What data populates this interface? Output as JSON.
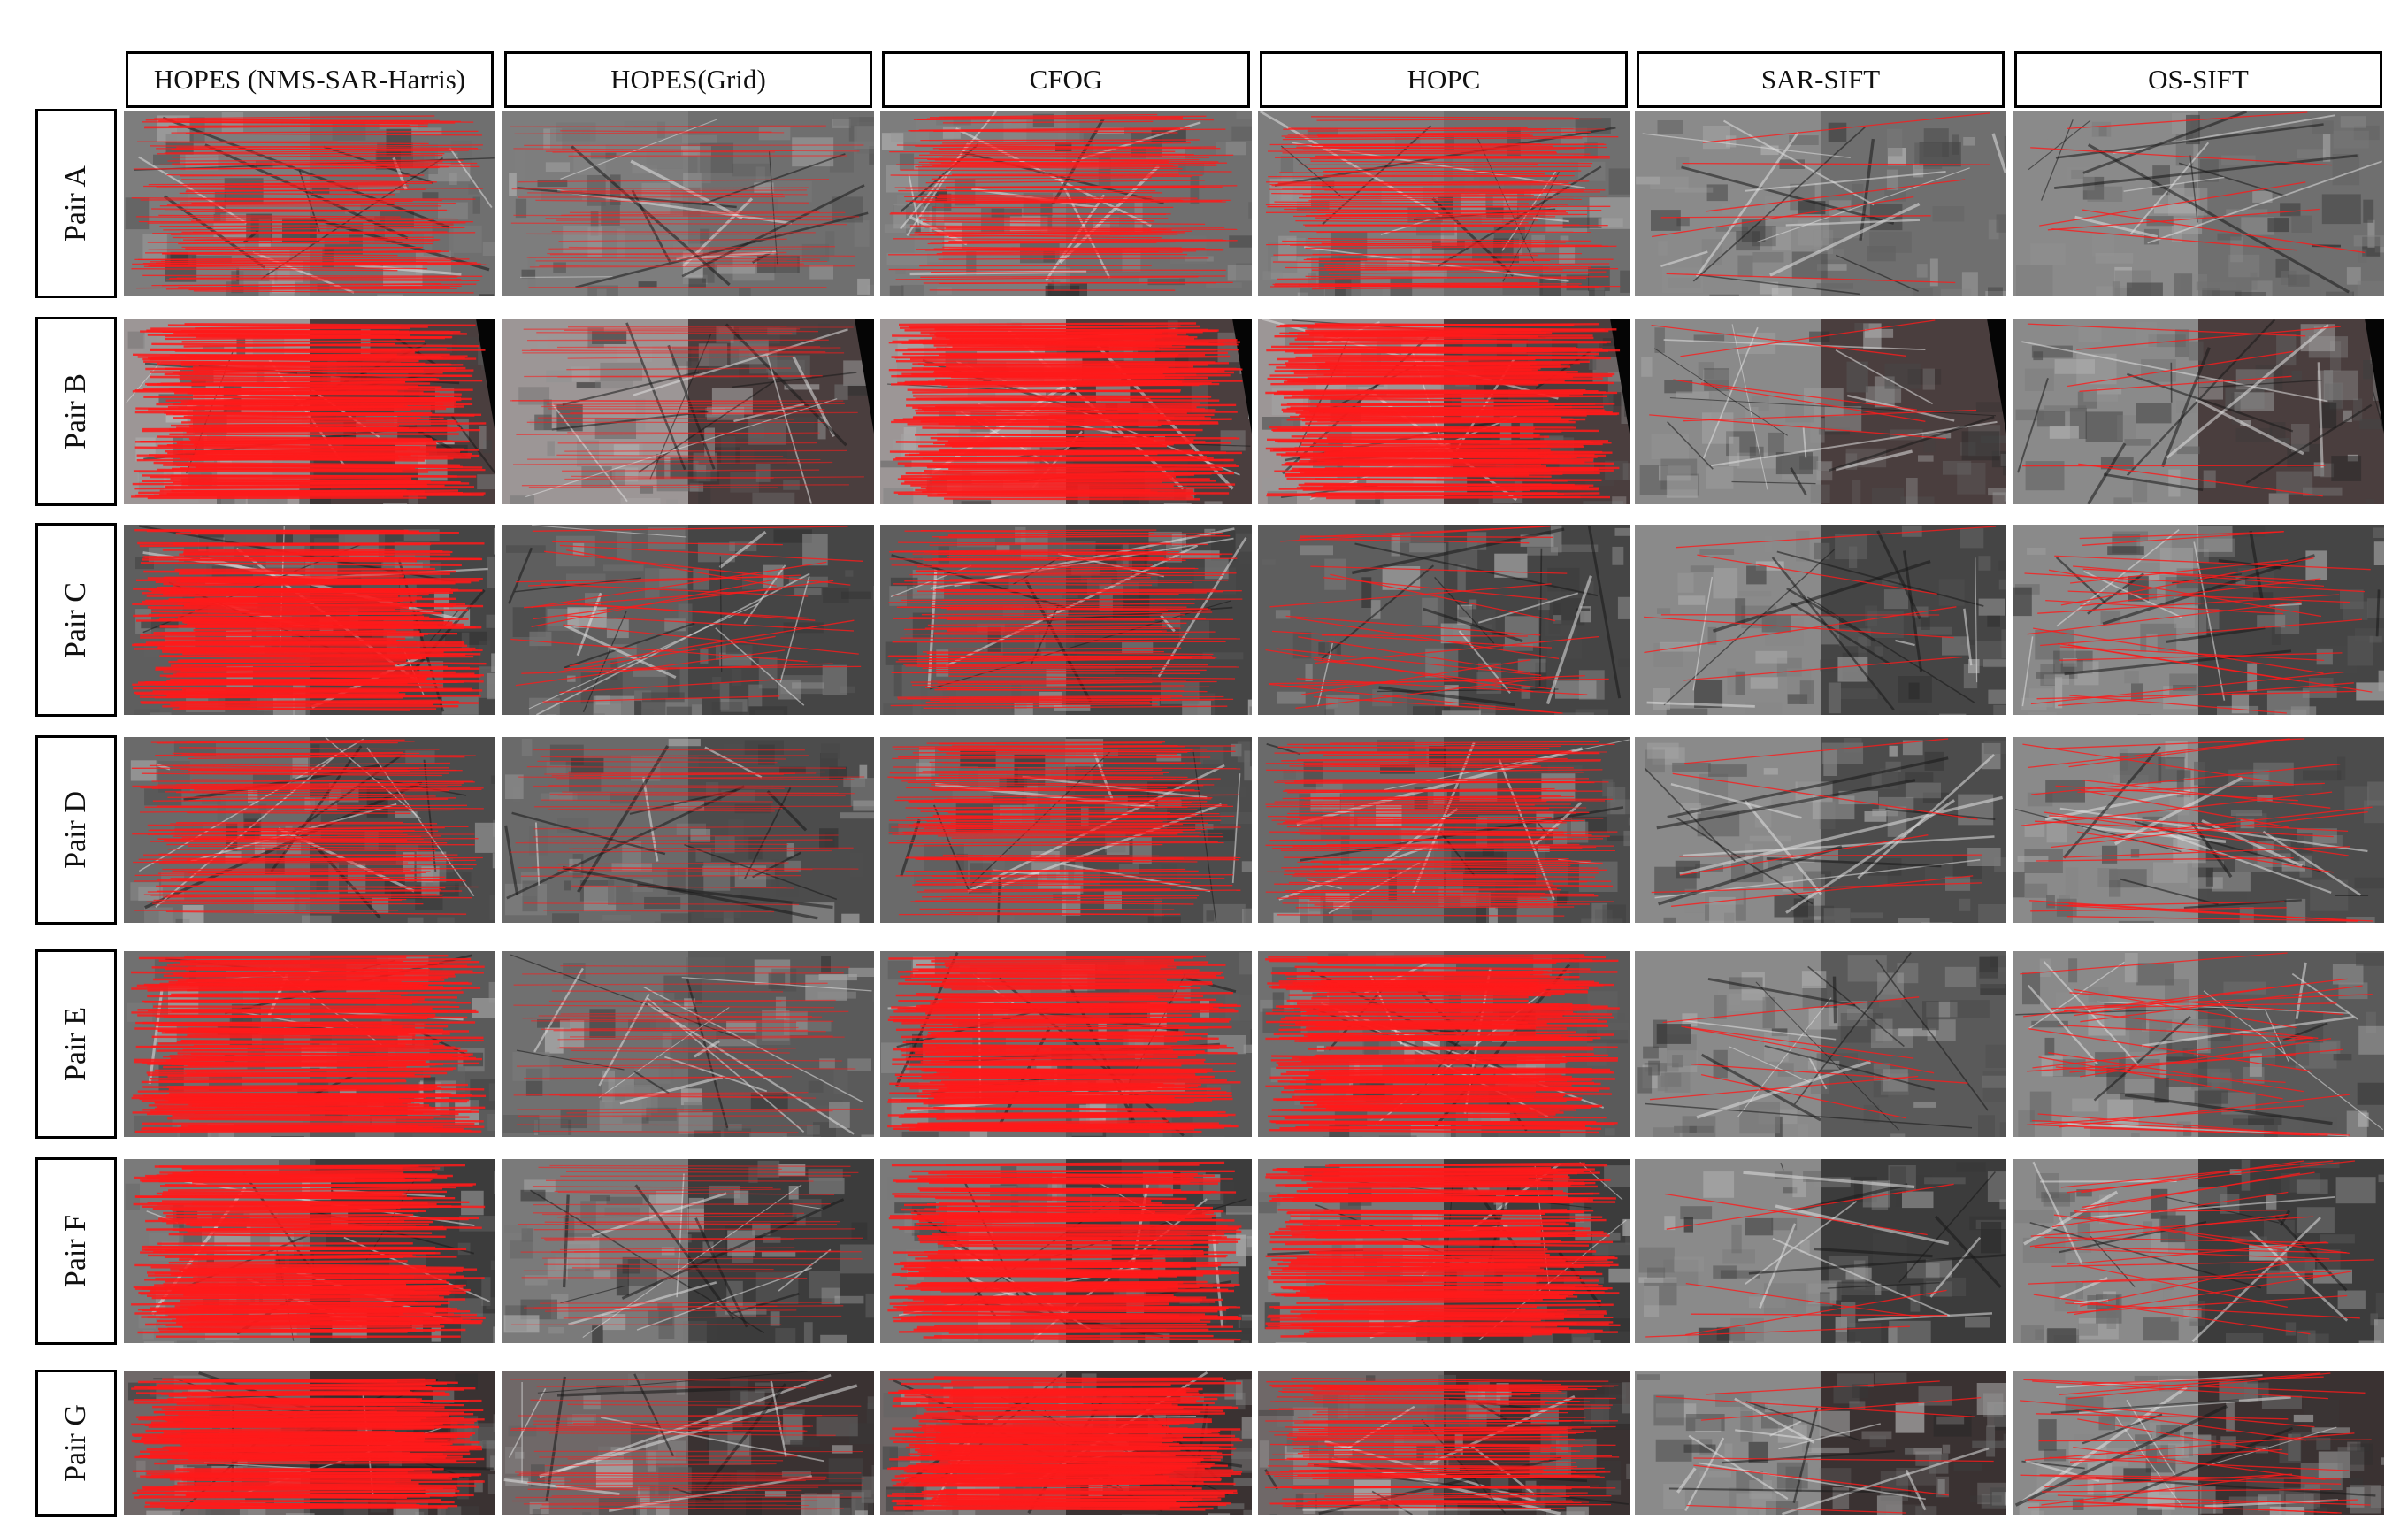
{
  "columns": [
    "HOPES (NMS-SAR-Harris)",
    "HOPES(Grid)",
    "CFOG",
    "HOPC",
    "SAR-SIFT",
    "OS-SIFT"
  ],
  "rows": [
    "Pair A",
    "Pair B",
    "Pair C",
    "Pair D",
    "Pair E",
    "Pair F",
    "Pair G"
  ],
  "colors": {
    "match_line": "#ff1a1a",
    "border": "#000000"
  },
  "match_density": [
    [
      "dense",
      "sparse",
      "dense",
      "dense",
      "few",
      "few"
    ],
    [
      "very-dense",
      "sparse",
      "very-dense",
      "very-dense",
      "few",
      "few"
    ],
    [
      "very-dense",
      "medium",
      "dense",
      "medium",
      "few",
      "medium"
    ],
    [
      "dense",
      "sparse",
      "dense",
      "dense",
      "few",
      "medium"
    ],
    [
      "very-dense",
      "sparse",
      "very-dense",
      "very-dense",
      "few",
      "medium"
    ],
    [
      "very-dense",
      "sparse",
      "very-dense",
      "very-dense",
      "few",
      "medium"
    ],
    [
      "very-dense",
      "sparse",
      "very-dense",
      "dense",
      "few",
      "medium"
    ]
  ]
}
